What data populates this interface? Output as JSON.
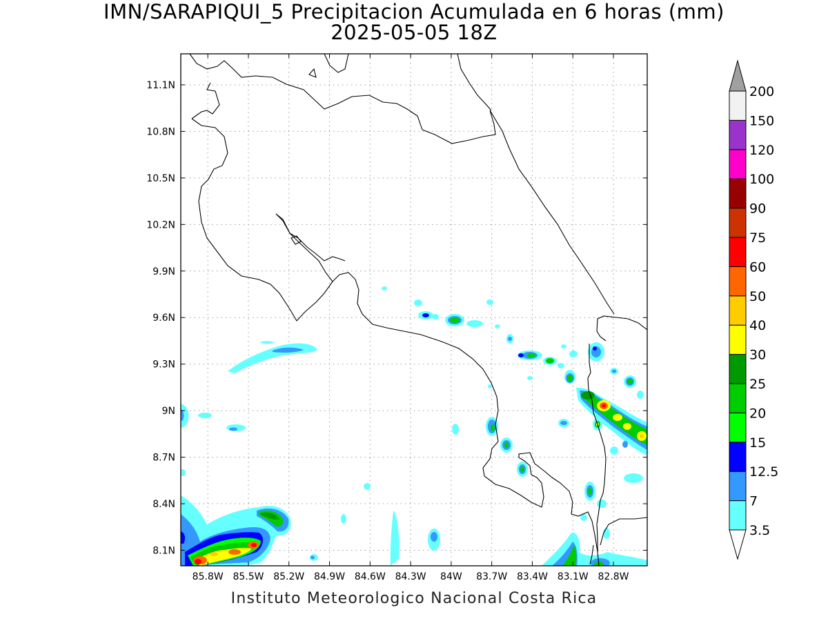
{
  "title_line1": "IMN/SARAPIQUI_5 Precipitacion Acumulada en 6 horas (mm)",
  "title_line2": "2025-05-05 18Z",
  "credit": "Instituto Meteorologico Nacional Costa Rica",
  "map": {
    "lon_range": [
      -86.0,
      -82.55
    ],
    "lat_range": [
      8.0,
      11.3
    ],
    "lon_ticks": [
      "85.8W",
      "85.5W",
      "85.2W",
      "84.9W",
      "84.6W",
      "84.3W",
      "84W",
      "83.7W",
      "83.4W",
      "83.1W",
      "82.8W"
    ],
    "lat_ticks": [
      "8.1N",
      "8.4N",
      "8.7N",
      "9N",
      "9.3N",
      "9.6N",
      "9.9N",
      "10.2N",
      "10.5N",
      "10.8N",
      "11.1N"
    ],
    "grid": "dotted"
  },
  "legend": {
    "labels": [
      "3.5",
      "7",
      "12.5",
      "15",
      "20",
      "25",
      "30",
      "40",
      "50",
      "60",
      "75",
      "90",
      "100",
      "120",
      "150",
      "200"
    ],
    "colors": [
      "#66ffff",
      "#3399ff",
      "#0000ff",
      "#00ff00",
      "#00cc00",
      "#009900",
      "#ffff00",
      "#ffcc00",
      "#ff6600",
      "#ff0000",
      "#cc3300",
      "#990000",
      "#ff00cc",
      "#9933cc",
      "#f2f2f2"
    ],
    "under_color": "#ffffff",
    "over_color": "#a0a0a0"
  }
}
